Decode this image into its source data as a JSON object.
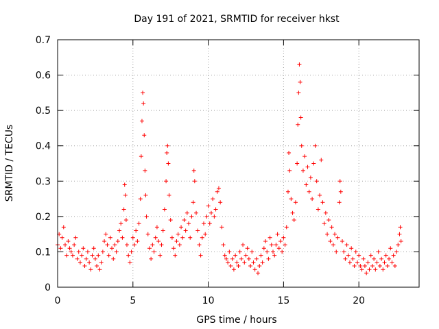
{
  "chart_data": {
    "type": "scatter",
    "title": "Day 191 of 2021, SRMTID for receiver hkst",
    "xlabel": "GPS time / hours",
    "ylabel": "SRMTID / TECUs",
    "xlim": [
      0,
      24
    ],
    "ylim": [
      0,
      0.7
    ],
    "xticks": [
      0,
      5,
      10,
      15,
      20
    ],
    "xtick_labels": [
      "0",
      "5",
      "10",
      "15",
      "20"
    ],
    "yticks": [
      0,
      0.1,
      0.2,
      0.3,
      0.4,
      0.5,
      0.6,
      0.7
    ],
    "ytick_labels": [
      "0",
      "0.1",
      "0.2",
      "0.3",
      "0.4",
      "0.5",
      "0.6",
      "0.7"
    ],
    "grid": true,
    "marker": "+",
    "color": "#ff0000",
    "series": [
      {
        "name": "SRMTID",
        "points": [
          [
            0.0,
            0.12
          ],
          [
            0.1,
            0.15
          ],
          [
            0.2,
            0.11
          ],
          [
            0.3,
            0.14
          ],
          [
            0.4,
            0.17
          ],
          [
            0.5,
            0.12
          ],
          [
            0.6,
            0.09
          ],
          [
            0.7,
            0.13
          ],
          [
            0.8,
            0.11
          ],
          [
            0.9,
            0.1
          ],
          [
            1.0,
            0.09
          ],
          [
            1.1,
            0.12
          ],
          [
            1.2,
            0.14
          ],
          [
            1.3,
            0.08
          ],
          [
            1.4,
            0.1
          ],
          [
            1.5,
            0.07
          ],
          [
            1.6,
            0.09
          ],
          [
            1.7,
            0.11
          ],
          [
            1.8,
            0.06
          ],
          [
            1.9,
            0.08
          ],
          [
            2.0,
            0.1
          ],
          [
            2.1,
            0.07
          ],
          [
            2.2,
            0.05
          ],
          [
            2.3,
            0.09
          ],
          [
            2.4,
            0.11
          ],
          [
            2.5,
            0.08
          ],
          [
            2.6,
            0.06
          ],
          [
            2.7,
            0.09
          ],
          [
            2.8,
            0.05
          ],
          [
            2.9,
            0.07
          ],
          [
            3.0,
            0.1
          ],
          [
            3.1,
            0.13
          ],
          [
            3.2,
            0.15
          ],
          [
            3.3,
            0.12
          ],
          [
            3.4,
            0.09
          ],
          [
            3.5,
            0.14
          ],
          [
            3.6,
            0.11
          ],
          [
            3.7,
            0.08
          ],
          [
            3.8,
            0.12
          ],
          [
            3.9,
            0.1
          ],
          [
            4.0,
            0.13
          ],
          [
            4.1,
            0.16
          ],
          [
            4.2,
            0.18
          ],
          [
            4.3,
            0.14
          ],
          [
            4.4,
            0.22
          ],
          [
            4.45,
            0.29
          ],
          [
            4.5,
            0.26
          ],
          [
            4.55,
            0.19
          ],
          [
            4.6,
            0.12
          ],
          [
            4.7,
            0.09
          ],
          [
            4.8,
            0.07
          ],
          [
            4.9,
            0.1
          ],
          [
            5.0,
            0.14
          ],
          [
            5.1,
            0.12
          ],
          [
            5.2,
            0.16
          ],
          [
            5.3,
            0.13
          ],
          [
            5.4,
            0.18
          ],
          [
            5.5,
            0.25
          ],
          [
            5.55,
            0.37
          ],
          [
            5.6,
            0.47
          ],
          [
            5.65,
            0.55
          ],
          [
            5.7,
            0.52
          ],
          [
            5.75,
            0.43
          ],
          [
            5.8,
            0.33
          ],
          [
            5.85,
            0.26
          ],
          [
            5.9,
            0.2
          ],
          [
            6.0,
            0.15
          ],
          [
            6.1,
            0.11
          ],
          [
            6.2,
            0.08
          ],
          [
            6.3,
            0.12
          ],
          [
            6.4,
            0.1
          ],
          [
            6.5,
            0.14
          ],
          [
            6.6,
            0.17
          ],
          [
            6.7,
            0.13
          ],
          [
            6.8,
            0.09
          ],
          [
            6.9,
            0.12
          ],
          [
            7.0,
            0.16
          ],
          [
            7.1,
            0.22
          ],
          [
            7.2,
            0.3
          ],
          [
            7.25,
            0.38
          ],
          [
            7.3,
            0.4
          ],
          [
            7.35,
            0.35
          ],
          [
            7.4,
            0.26
          ],
          [
            7.5,
            0.19
          ],
          [
            7.6,
            0.14
          ],
          [
            7.7,
            0.11
          ],
          [
            7.8,
            0.09
          ],
          [
            7.9,
            0.13
          ],
          [
            8.0,
            0.15
          ],
          [
            8.1,
            0.12
          ],
          [
            8.2,
            0.17
          ],
          [
            8.3,
            0.14
          ],
          [
            8.4,
            0.19
          ],
          [
            8.5,
            0.16
          ],
          [
            8.6,
            0.21
          ],
          [
            8.7,
            0.18
          ],
          [
            8.8,
            0.14
          ],
          [
            8.9,
            0.2
          ],
          [
            9.0,
            0.24
          ],
          [
            9.05,
            0.33
          ],
          [
            9.1,
            0.3
          ],
          [
            9.2,
            0.21
          ],
          [
            9.3,
            0.16
          ],
          [
            9.4,
            0.12
          ],
          [
            9.5,
            0.09
          ],
          [
            9.6,
            0.14
          ],
          [
            9.7,
            0.18
          ],
          [
            9.8,
            0.15
          ],
          [
            9.9,
            0.2
          ],
          [
            10.0,
            0.23
          ],
          [
            10.1,
            0.18
          ],
          [
            10.2,
            0.21
          ],
          [
            10.3,
            0.25
          ],
          [
            10.4,
            0.2
          ],
          [
            10.5,
            0.22
          ],
          [
            10.6,
            0.27
          ],
          [
            10.7,
            0.28
          ],
          [
            10.8,
            0.24
          ],
          [
            10.9,
            0.17
          ],
          [
            11.0,
            0.12
          ],
          [
            11.1,
            0.09
          ],
          [
            11.2,
            0.08
          ],
          [
            11.3,
            0.07
          ],
          [
            11.4,
            0.1
          ],
          [
            11.5,
            0.06
          ],
          [
            11.6,
            0.08
          ],
          [
            11.7,
            0.05
          ],
          [
            11.8,
            0.09
          ],
          [
            11.9,
            0.07
          ],
          [
            12.0,
            0.06
          ],
          [
            12.1,
            0.1
          ],
          [
            12.2,
            0.08
          ],
          [
            12.3,
            0.12
          ],
          [
            12.4,
            0.07
          ],
          [
            12.5,
            0.09
          ],
          [
            12.6,
            0.11
          ],
          [
            12.7,
            0.08
          ],
          [
            12.8,
            0.06
          ],
          [
            12.9,
            0.1
          ],
          [
            13.0,
            0.07
          ],
          [
            13.1,
            0.05
          ],
          [
            13.2,
            0.08
          ],
          [
            13.3,
            0.04
          ],
          [
            13.4,
            0.06
          ],
          [
            13.5,
            0.09
          ],
          [
            13.6,
            0.07
          ],
          [
            13.7,
            0.11
          ],
          [
            13.8,
            0.13
          ],
          [
            13.9,
            0.1
          ],
          [
            14.0,
            0.08
          ],
          [
            14.1,
            0.14
          ],
          [
            14.2,
            0.12
          ],
          [
            14.3,
            0.1
          ],
          [
            14.4,
            0.09
          ],
          [
            14.5,
            0.12
          ],
          [
            14.6,
            0.15
          ],
          [
            14.7,
            0.11
          ],
          [
            14.8,
            0.13
          ],
          [
            14.9,
            0.1
          ],
          [
            15.0,
            0.14
          ],
          [
            15.1,
            0.12
          ],
          [
            15.2,
            0.17
          ],
          [
            15.3,
            0.27
          ],
          [
            15.35,
            0.38
          ],
          [
            15.4,
            0.33
          ],
          [
            15.5,
            0.25
          ],
          [
            15.6,
            0.21
          ],
          [
            15.7,
            0.19
          ],
          [
            15.8,
            0.24
          ],
          [
            15.9,
            0.35
          ],
          [
            15.95,
            0.46
          ],
          [
            16.0,
            0.55
          ],
          [
            16.05,
            0.63
          ],
          [
            16.1,
            0.58
          ],
          [
            16.15,
            0.48
          ],
          [
            16.2,
            0.4
          ],
          [
            16.3,
            0.33
          ],
          [
            16.4,
            0.37
          ],
          [
            16.5,
            0.29
          ],
          [
            16.6,
            0.34
          ],
          [
            16.7,
            0.27
          ],
          [
            16.8,
            0.31
          ],
          [
            16.9,
            0.25
          ],
          [
            17.0,
            0.35
          ],
          [
            17.1,
            0.4
          ],
          [
            17.2,
            0.3
          ],
          [
            17.3,
            0.22
          ],
          [
            17.4,
            0.26
          ],
          [
            17.5,
            0.36
          ],
          [
            17.6,
            0.24
          ],
          [
            17.7,
            0.18
          ],
          [
            17.8,
            0.21
          ],
          [
            17.9,
            0.15
          ],
          [
            18.0,
            0.19
          ],
          [
            18.1,
            0.13
          ],
          [
            18.2,
            0.17
          ],
          [
            18.3,
            0.12
          ],
          [
            18.4,
            0.15
          ],
          [
            18.5,
            0.1
          ],
          [
            18.6,
            0.14
          ],
          [
            18.7,
            0.24
          ],
          [
            18.75,
            0.3
          ],
          [
            18.8,
            0.27
          ],
          [
            18.9,
            0.13
          ],
          [
            19.0,
            0.1
          ],
          [
            19.1,
            0.08
          ],
          [
            19.2,
            0.12
          ],
          [
            19.3,
            0.09
          ],
          [
            19.4,
            0.07
          ],
          [
            19.5,
            0.11
          ],
          [
            19.6,
            0.08
          ],
          [
            19.7,
            0.06
          ],
          [
            19.8,
            0.1
          ],
          [
            19.9,
            0.07
          ],
          [
            20.0,
            0.09
          ],
          [
            20.1,
            0.06
          ],
          [
            20.2,
            0.05
          ],
          [
            20.3,
            0.08
          ],
          [
            20.4,
            0.06
          ],
          [
            20.5,
            0.04
          ],
          [
            20.6,
            0.07
          ],
          [
            20.7,
            0.05
          ],
          [
            20.8,
            0.09
          ],
          [
            20.9,
            0.06
          ],
          [
            21.0,
            0.08
          ],
          [
            21.1,
            0.05
          ],
          [
            21.2,
            0.07
          ],
          [
            21.3,
            0.1
          ],
          [
            21.4,
            0.06
          ],
          [
            21.5,
            0.08
          ],
          [
            21.6,
            0.05
          ],
          [
            21.7,
            0.07
          ],
          [
            21.8,
            0.09
          ],
          [
            21.9,
            0.06
          ],
          [
            22.0,
            0.08
          ],
          [
            22.1,
            0.11
          ],
          [
            22.2,
            0.07
          ],
          [
            22.3,
            0.09
          ],
          [
            22.4,
            0.06
          ],
          [
            22.5,
            0.1
          ],
          [
            22.6,
            0.12
          ],
          [
            22.7,
            0.15
          ],
          [
            22.75,
            0.17
          ],
          [
            22.8,
            0.13
          ]
        ]
      }
    ]
  }
}
